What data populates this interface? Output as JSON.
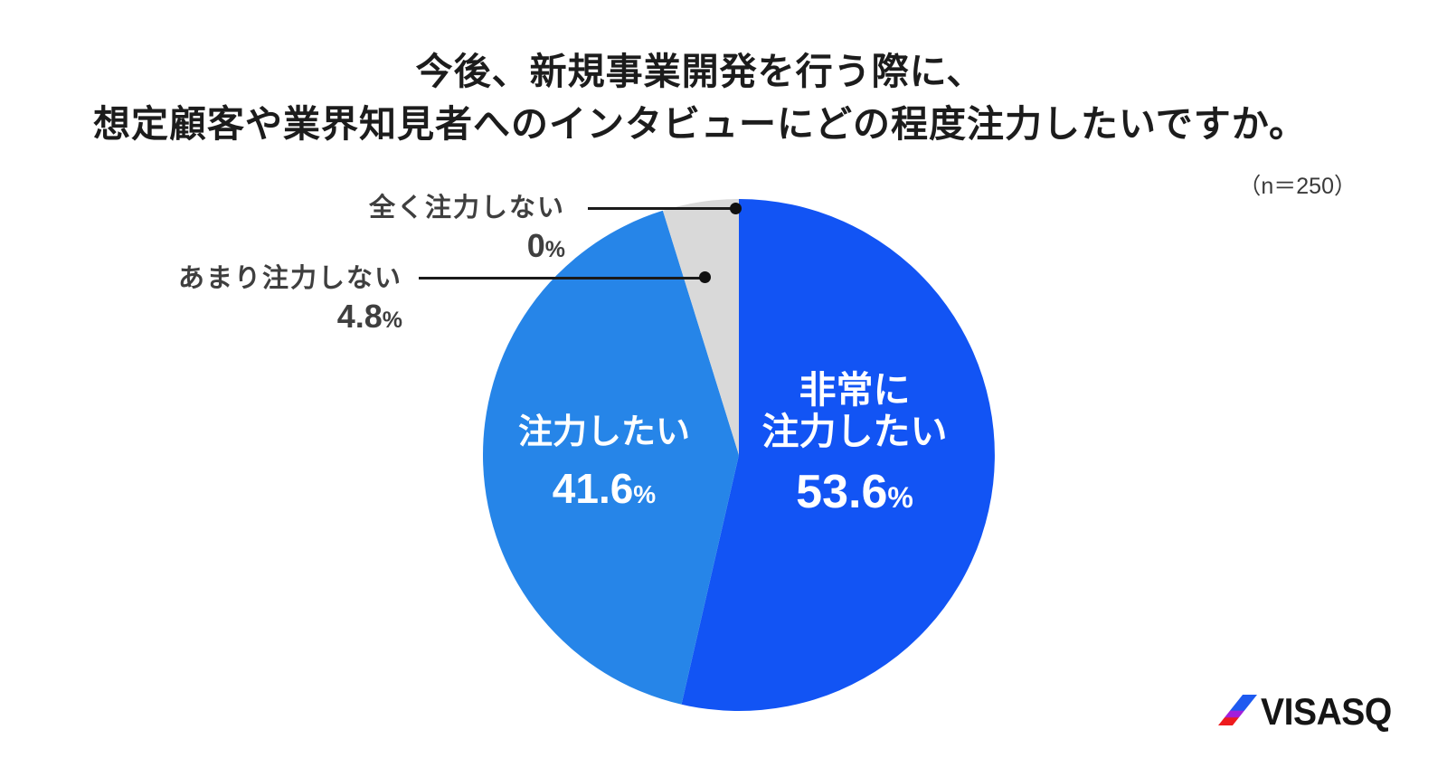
{
  "title": {
    "line1": "今後、新規事業開発を行う際に、",
    "line2": "想定顧客や業界知見者へのインタビューにどの程度注力したいですか。"
  },
  "sample_size": "（n＝250）",
  "chart_data": {
    "type": "pie",
    "title": "今後、新規事業開発を行う際に、想定顧客や業界知見者へのインタビューにどの程度注力したいですか。",
    "sample_note": "（n＝250）",
    "n": 250,
    "unit": "%",
    "start_angle_deg": 0,
    "direction": "clockwise",
    "legend": "none",
    "slices": [
      {
        "label": "非常に注力したい",
        "label_lines": [
          "非常に",
          "注力したい"
        ],
        "value": 53.6,
        "value_text": "53.6",
        "color": "#1254F4",
        "text_color": "#FFFFFF",
        "label_placement": "inside"
      },
      {
        "label": "注力したい",
        "label_lines": [
          "注力したい"
        ],
        "value": 41.6,
        "value_text": "41.6",
        "color": "#2685E8",
        "text_color": "#FFFFFF",
        "label_placement": "inside"
      },
      {
        "label": "あまり注力しない",
        "value": 4.8,
        "value_text": "4.8",
        "color": "#D9D9D9",
        "text_color": "#3F3F3F",
        "label_placement": "outside"
      },
      {
        "label": "全く注力しない",
        "value": 0,
        "value_text": "0",
        "color": "#D9D9D9",
        "text_color": "#3F3F3F",
        "label_placement": "outside"
      }
    ]
  },
  "logo": {
    "text": "VISASQ",
    "slash_colors": [
      "#1E5AF0",
      "#A21FDB",
      "#EE1B1E"
    ],
    "text_color": "#151515"
  }
}
